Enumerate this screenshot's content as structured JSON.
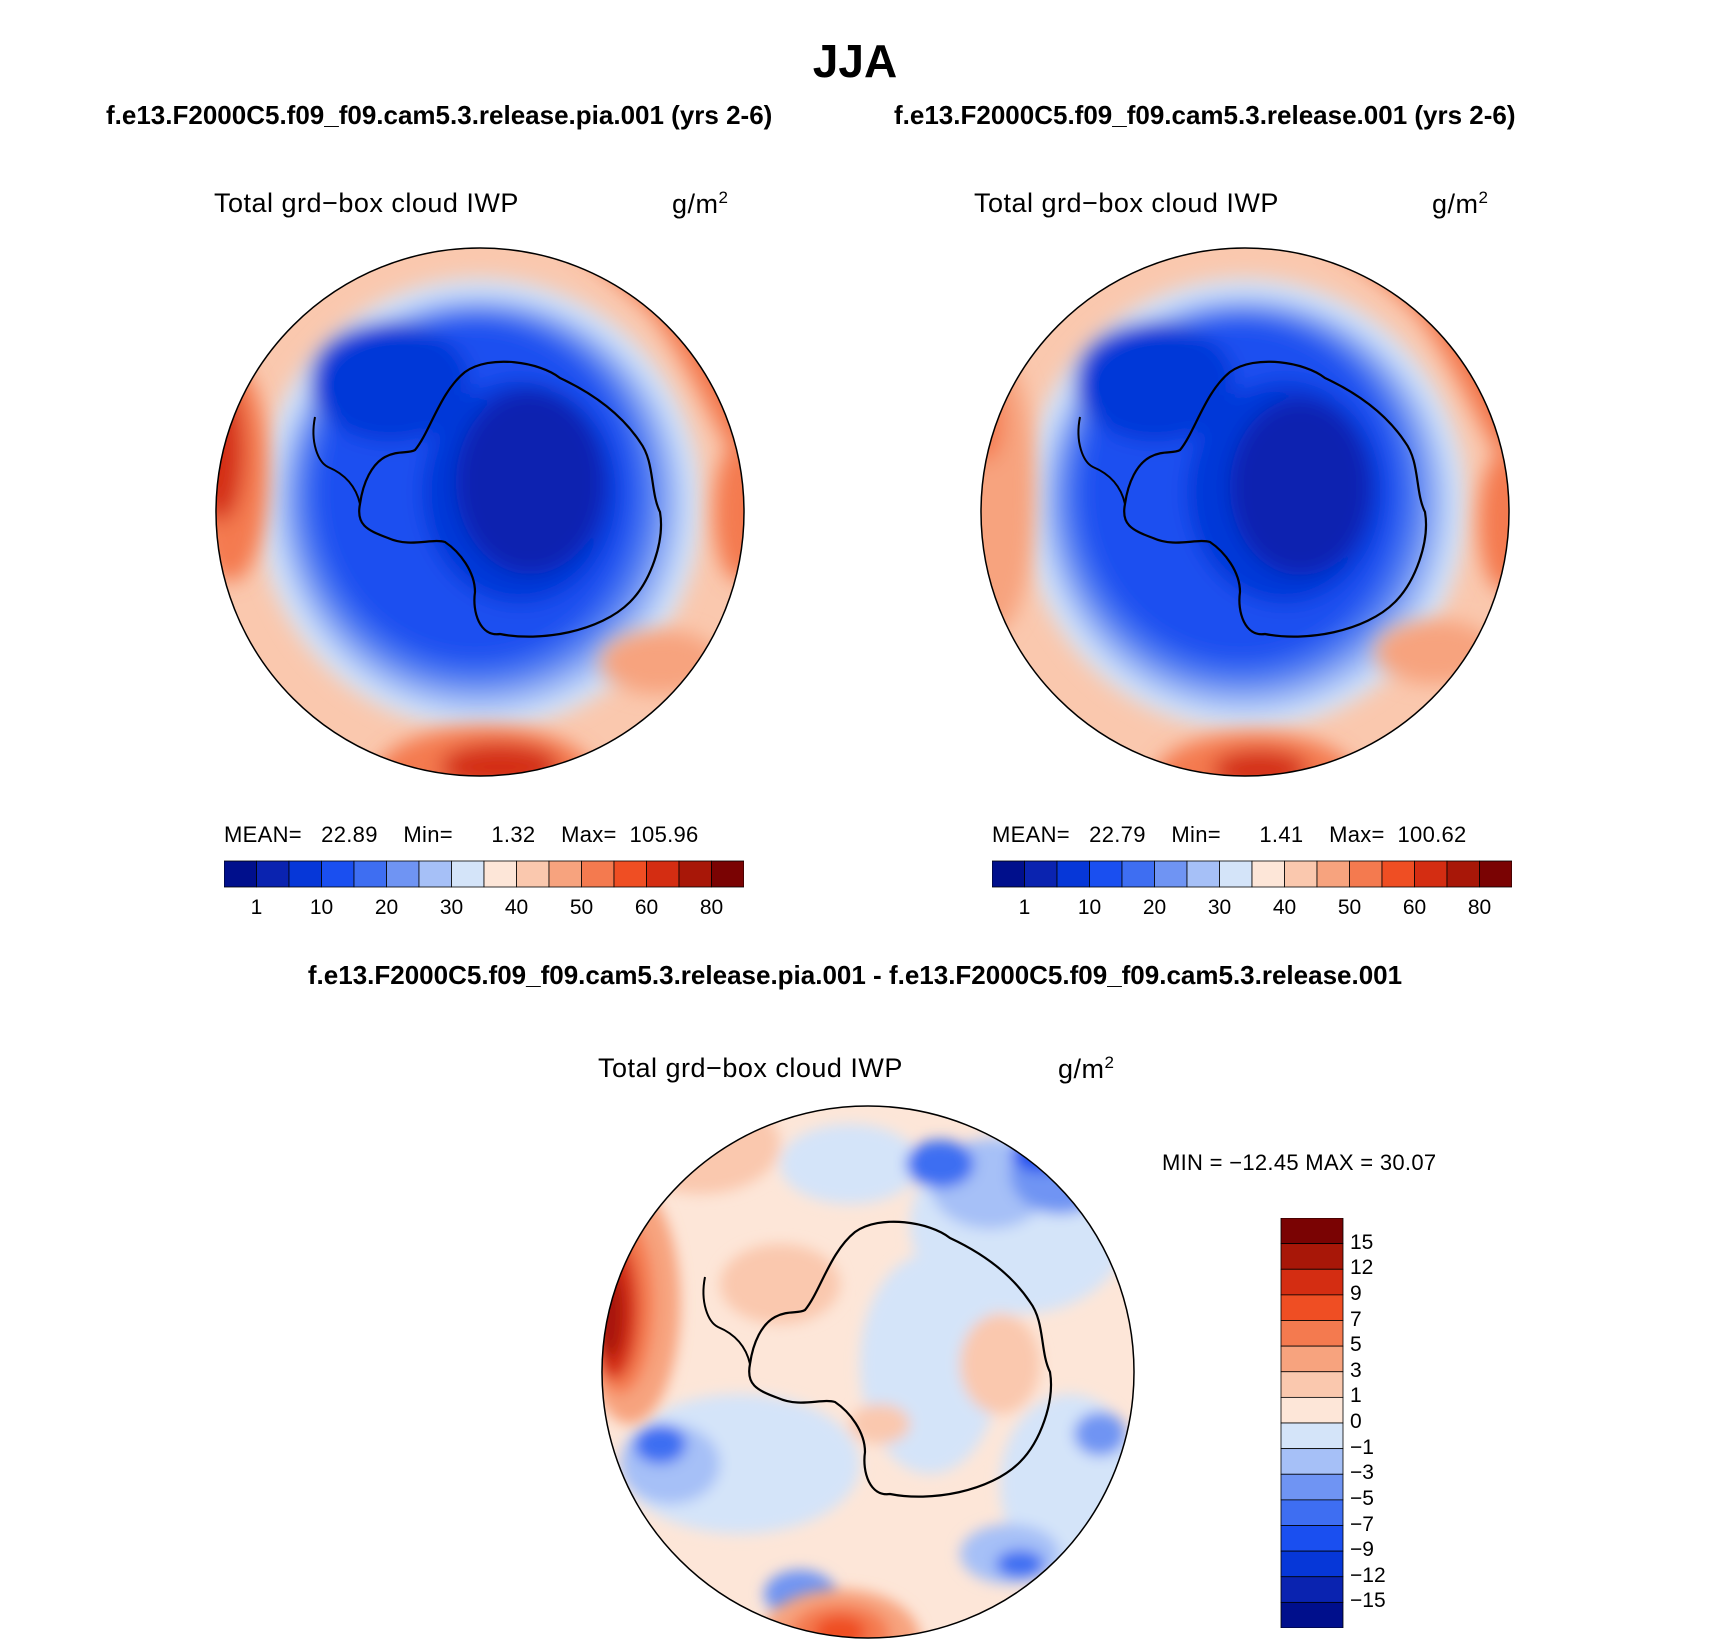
{
  "chart_data": [
    {
      "type": "heatmap",
      "panel": "left",
      "title": "f.e13.F2000C5.f09_f09.cam5.3.release.pia.001 (yrs 2-6)",
      "variable": "Total grd−box cloud IWP",
      "units": "g/m",
      "units_exp": "2",
      "stats": {
        "mean_label": "MEAN=",
        "mean": "22.89",
        "min_label": "Min=",
        "min": "1.32",
        "max_label": "Max=",
        "max": "105.96"
      },
      "colorbar": {
        "orientation": "horizontal",
        "levels": [
          1,
          5,
          10,
          15,
          20,
          25,
          30,
          35,
          40,
          45,
          50,
          55,
          60,
          70,
          80
        ],
        "tick_labels": [
          "1",
          "10",
          "20",
          "30",
          "40",
          "50",
          "60",
          "80"
        ],
        "colors": [
          "#000f8c",
          "#0a23b0",
          "#0637d8",
          "#1a4ff0",
          "#3e6ef2",
          "#6f94f3",
          "#a6c0f7",
          "#d4e4f9",
          "#fde6d8",
          "#fac8ae",
          "#f7a37e",
          "#f47a4f",
          "#ef4e23",
          "#d42d12",
          "#a81708",
          "#7a0303"
        ]
      },
      "spatial_pattern": "Values 1-10 g/m2 over Antarctic interior, 20-30 over surrounding ocean, 40-80+ in mid-latitude storm-track bands near the rim"
    },
    {
      "type": "heatmap",
      "panel": "right",
      "title": "f.e13.F2000C5.f09_f09.cam5.3.release.001 (yrs 2-6)",
      "variable": "Total grd−box cloud IWP",
      "units": "g/m",
      "units_exp": "2",
      "stats": {
        "mean_label": "MEAN=",
        "mean": "22.79",
        "min_label": "Min=",
        "min": "1.41",
        "max_label": "Max=",
        "max": "100.62"
      },
      "colorbar": {
        "orientation": "horizontal",
        "levels": [
          1,
          5,
          10,
          15,
          20,
          25,
          30,
          35,
          40,
          45,
          50,
          55,
          60,
          70,
          80
        ],
        "tick_labels": [
          "1",
          "10",
          "20",
          "30",
          "40",
          "50",
          "60",
          "80"
        ],
        "colors": [
          "#000f8c",
          "#0a23b0",
          "#0637d8",
          "#1a4ff0",
          "#3e6ef2",
          "#6f94f3",
          "#a6c0f7",
          "#d4e4f9",
          "#fde6d8",
          "#fac8ae",
          "#f7a37e",
          "#f47a4f",
          "#ef4e23",
          "#d42d12",
          "#a81708",
          "#7a0303"
        ]
      },
      "spatial_pattern": "Similar to left panel with slightly weaker maxima"
    },
    {
      "type": "heatmap",
      "panel": "difference",
      "title": "f.e13.F2000C5.f09_f09.cam5.3.release.pia.001 - f.e13.F2000C5.f09_f09.cam5.3.release.001",
      "variable": "Total grd−box cloud IWP",
      "units": "g/m",
      "units_exp": "2",
      "stats": {
        "minmax_label": "MIN = −12.45 MAX =   30.07"
      },
      "colorbar": {
        "orientation": "vertical",
        "levels": [
          15,
          12,
          9,
          7,
          5,
          3,
          1,
          0,
          -1,
          -3,
          -5,
          -7,
          -9,
          -12,
          -15
        ],
        "tick_labels": [
          "15",
          "12",
          "9",
          "7",
          "5",
          "3",
          "1",
          "0",
          "−1",
          "−3",
          "−5",
          "−7",
          "−9",
          "−12",
          "−15"
        ],
        "colors": [
          "#7a0303",
          "#a81708",
          "#d42d12",
          "#ef4e23",
          "#f47a4f",
          "#f7a37e",
          "#fac8ae",
          "#fde6d8",
          "#d4e4f9",
          "#a6c0f7",
          "#6f94f3",
          "#3e6ef2",
          "#1a4ff0",
          "#0637d8",
          "#0a23b0",
          "#000f8c"
        ]
      },
      "spatial_pattern": "Mostly -1 to 1 g/m2; strong positive anomaly (up to 15+) at left rim and bottom rim; negative anomalies (-5 to -12) in upper right and scattered over ocean"
    }
  ],
  "header": {
    "main_title": "JJA"
  }
}
